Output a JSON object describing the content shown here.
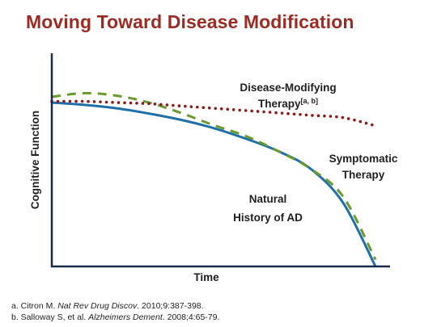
{
  "slide": {
    "title": "Moving Toward Disease Modification"
  },
  "chart_data": {
    "type": "line",
    "xlabel": "Time",
    "ylabel": "Cognitive Function",
    "grid": false,
    "x": [
      0,
      1,
      2,
      3,
      4,
      5,
      6,
      7,
      8,
      9,
      10
    ],
    "series": [
      {
        "name": "Natural History of AD",
        "label_lines": [
          "Natural",
          "History of AD"
        ],
        "style": "solid",
        "color": "#1f6fa8",
        "values": [
          100,
          98.6,
          96.5,
          93.3,
          89.4,
          84.4,
          77.9,
          70.3,
          59.5,
          38.8,
          0
        ]
      },
      {
        "name": "Symptomatic Therapy",
        "label_lines": [
          "Symptomatic",
          "Therapy"
        ],
        "style": "dashed",
        "color": "#6a9a2c",
        "values": [
          103.5,
          105.7,
          104.2,
          100,
          93.6,
          86.2,
          79.5,
          70.3,
          59.5,
          42.6,
          4.2
        ]
      },
      {
        "name": "Disease-Modifying Therapy",
        "label_lines": [
          "Disease-Modifying",
          "Therapy"
        ],
        "label_superscript": "[a, b]",
        "style": "dotted",
        "color": "#8b1a1a",
        "values": [
          100.7,
          100.7,
          100,
          99.3,
          97.9,
          96.5,
          95.1,
          93.7,
          92.2,
          90.8,
          85.8
        ]
      }
    ]
  },
  "references": [
    {
      "prefix": "a. Citron M. ",
      "journal": "Nat Rev Drug Discov",
      "rest": ". 2010;9:387-398."
    },
    {
      "prefix": "b. Salloway S, et al. ",
      "journal": "Alzheimers Dement",
      "rest": ". 2008;4:65-79."
    }
  ]
}
